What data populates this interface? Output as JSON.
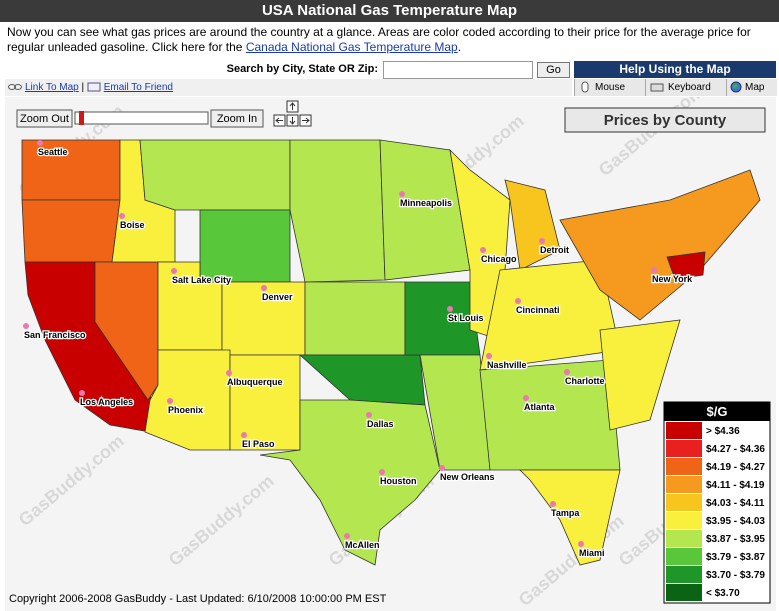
{
  "header": {
    "title": "USA National Gas Temperature Map"
  },
  "intro": {
    "text": "Now you can see what gas prices are around the country at a glance. Areas are color coded according to their price for the average price for regular unleaded gasoline. Click here for the ",
    "link": "Canada National Gas Temperature Map",
    "end": "."
  },
  "search": {
    "label": "Search by City, State OR Zip:",
    "button": "Go"
  },
  "help": {
    "title": "Help Using the Map",
    "tabs": [
      "Mouse",
      "Keyboard",
      "Map"
    ]
  },
  "links": {
    "link_to_map": "Link To Map",
    "separator": "|",
    "email": "Email To Friend"
  },
  "zoom": {
    "out": "Zoom Out",
    "in": "Zoom In"
  },
  "view_button": "Prices by County",
  "cities": [
    "Seattle",
    "Boise",
    "Salt Lake City",
    "Denver",
    "San Francisco",
    "Los Angeles",
    "Phoenix",
    "Albuquerque",
    "El Paso",
    "Dallas",
    "Houston",
    "McAllen",
    "Minneapolis",
    "Chicago",
    "Detroit",
    "St Louis",
    "Nashville",
    "Cincinnati",
    "Atlanta",
    "Charlotte",
    "New Orleans",
    "New York",
    "Tampa",
    "Miami"
  ],
  "watermark": "GasBuddy.com",
  "legend": {
    "title": "$/G",
    "items": [
      {
        "label": "> $4.36",
        "color": "#c80000"
      },
      {
        "label": "$4.27 - $4.36",
        "color": "#e82020"
      },
      {
        "label": "$4.19 - $4.27",
        "color": "#f06418"
      },
      {
        "label": "$4.11 - $4.19",
        "color": "#f59a1e"
      },
      {
        "label": "$4.03 - $4.11",
        "color": "#f8c41e"
      },
      {
        "label": "$3.95 - $4.03",
        "color": "#f8f03c"
      },
      {
        "label": "$3.87 - $3.95",
        "color": "#b4e650"
      },
      {
        "label": "$3.79 - $3.87",
        "color": "#58c83a"
      },
      {
        "label": "$3.70 - $3.79",
        "color": "#1e9628"
      },
      {
        "label": "< $3.70",
        "color": "#0a6414"
      }
    ]
  },
  "footer": "Copyright 2006-2008 GasBuddy - Last Updated: 6/10/2008 10:00:00 PM EST"
}
